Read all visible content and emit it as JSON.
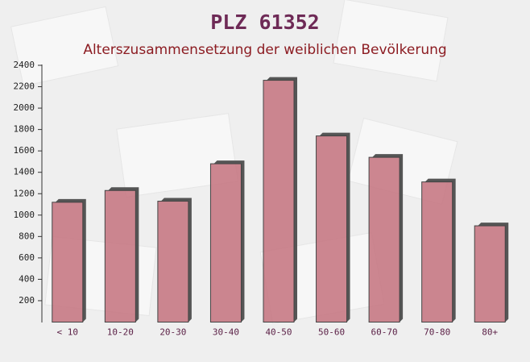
{
  "chart_data": {
    "type": "bar",
    "title": "PLZ 61352",
    "subtitle": "Alterszusammensetzung der weiblichen Bevölkerung",
    "categories": [
      "< 10",
      "10-20",
      "20-30",
      "30-40",
      "40-50",
      "50-60",
      "60-70",
      "70-80",
      "80+"
    ],
    "values": [
      1120,
      1230,
      1130,
      1480,
      2260,
      1740,
      1540,
      1310,
      900
    ],
    "color": "#c4727e",
    "ylim": [
      0,
      2400
    ],
    "yticks": [
      200,
      400,
      600,
      800,
      1000,
      1200,
      1400,
      1600,
      1800,
      2000,
      2200,
      2400
    ]
  }
}
